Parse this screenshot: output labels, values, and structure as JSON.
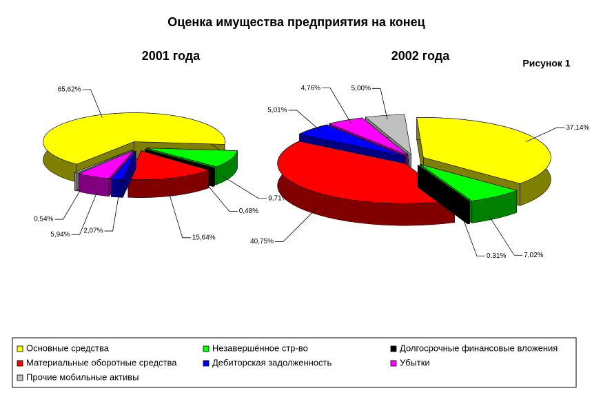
{
  "title": "Оценка имущества предприятия на конец",
  "annotation": "Рисунок 1",
  "chart_data": [
    {
      "type": "pie",
      "subtitle": "2001 года",
      "categories": [
        "Основные средства",
        "Незавершённое стр-во",
        "Долгосрочные финансовые вложения",
        "Материальные оборотные средства",
        "Дебиторская задолженность",
        "Убытки",
        "Прочие мобильные активы"
      ],
      "values": [
        65.62,
        9.71,
        0.48,
        15.64,
        2.07,
        5.94,
        0.54
      ],
      "value_labels": [
        "65,62%",
        "9,71%",
        "0,48%",
        "15,64%",
        "2,07%",
        "5,94%",
        "0,54%"
      ],
      "colors": [
        "#ffff00",
        "#00ff00",
        "#000000",
        "#ff0000",
        "#0000ff",
        "#ff00ff",
        "#c0c0c0"
      ]
    },
    {
      "type": "pie",
      "subtitle": "2002 года",
      "categories": [
        "Основные средства",
        "Незавершённое стр-во",
        "Долгосрочные финансовые вложения",
        "Материальные оборотные средства",
        "Дебиторская задолженность",
        "Убытки",
        "Прочие мобильные активы"
      ],
      "values": [
        37.14,
        7.02,
        0.31,
        40.75,
        5.01,
        4.76,
        5.0
      ],
      "value_labels": [
        "37,14%",
        "7,02%",
        "0,31%",
        "40,75%",
        "5,01%",
        "4,76%",
        "5,00%"
      ],
      "colors": [
        "#ffff00",
        "#00ff00",
        "#000000",
        "#ff0000",
        "#0000ff",
        "#ff00ff",
        "#c0c0c0"
      ]
    }
  ]
}
